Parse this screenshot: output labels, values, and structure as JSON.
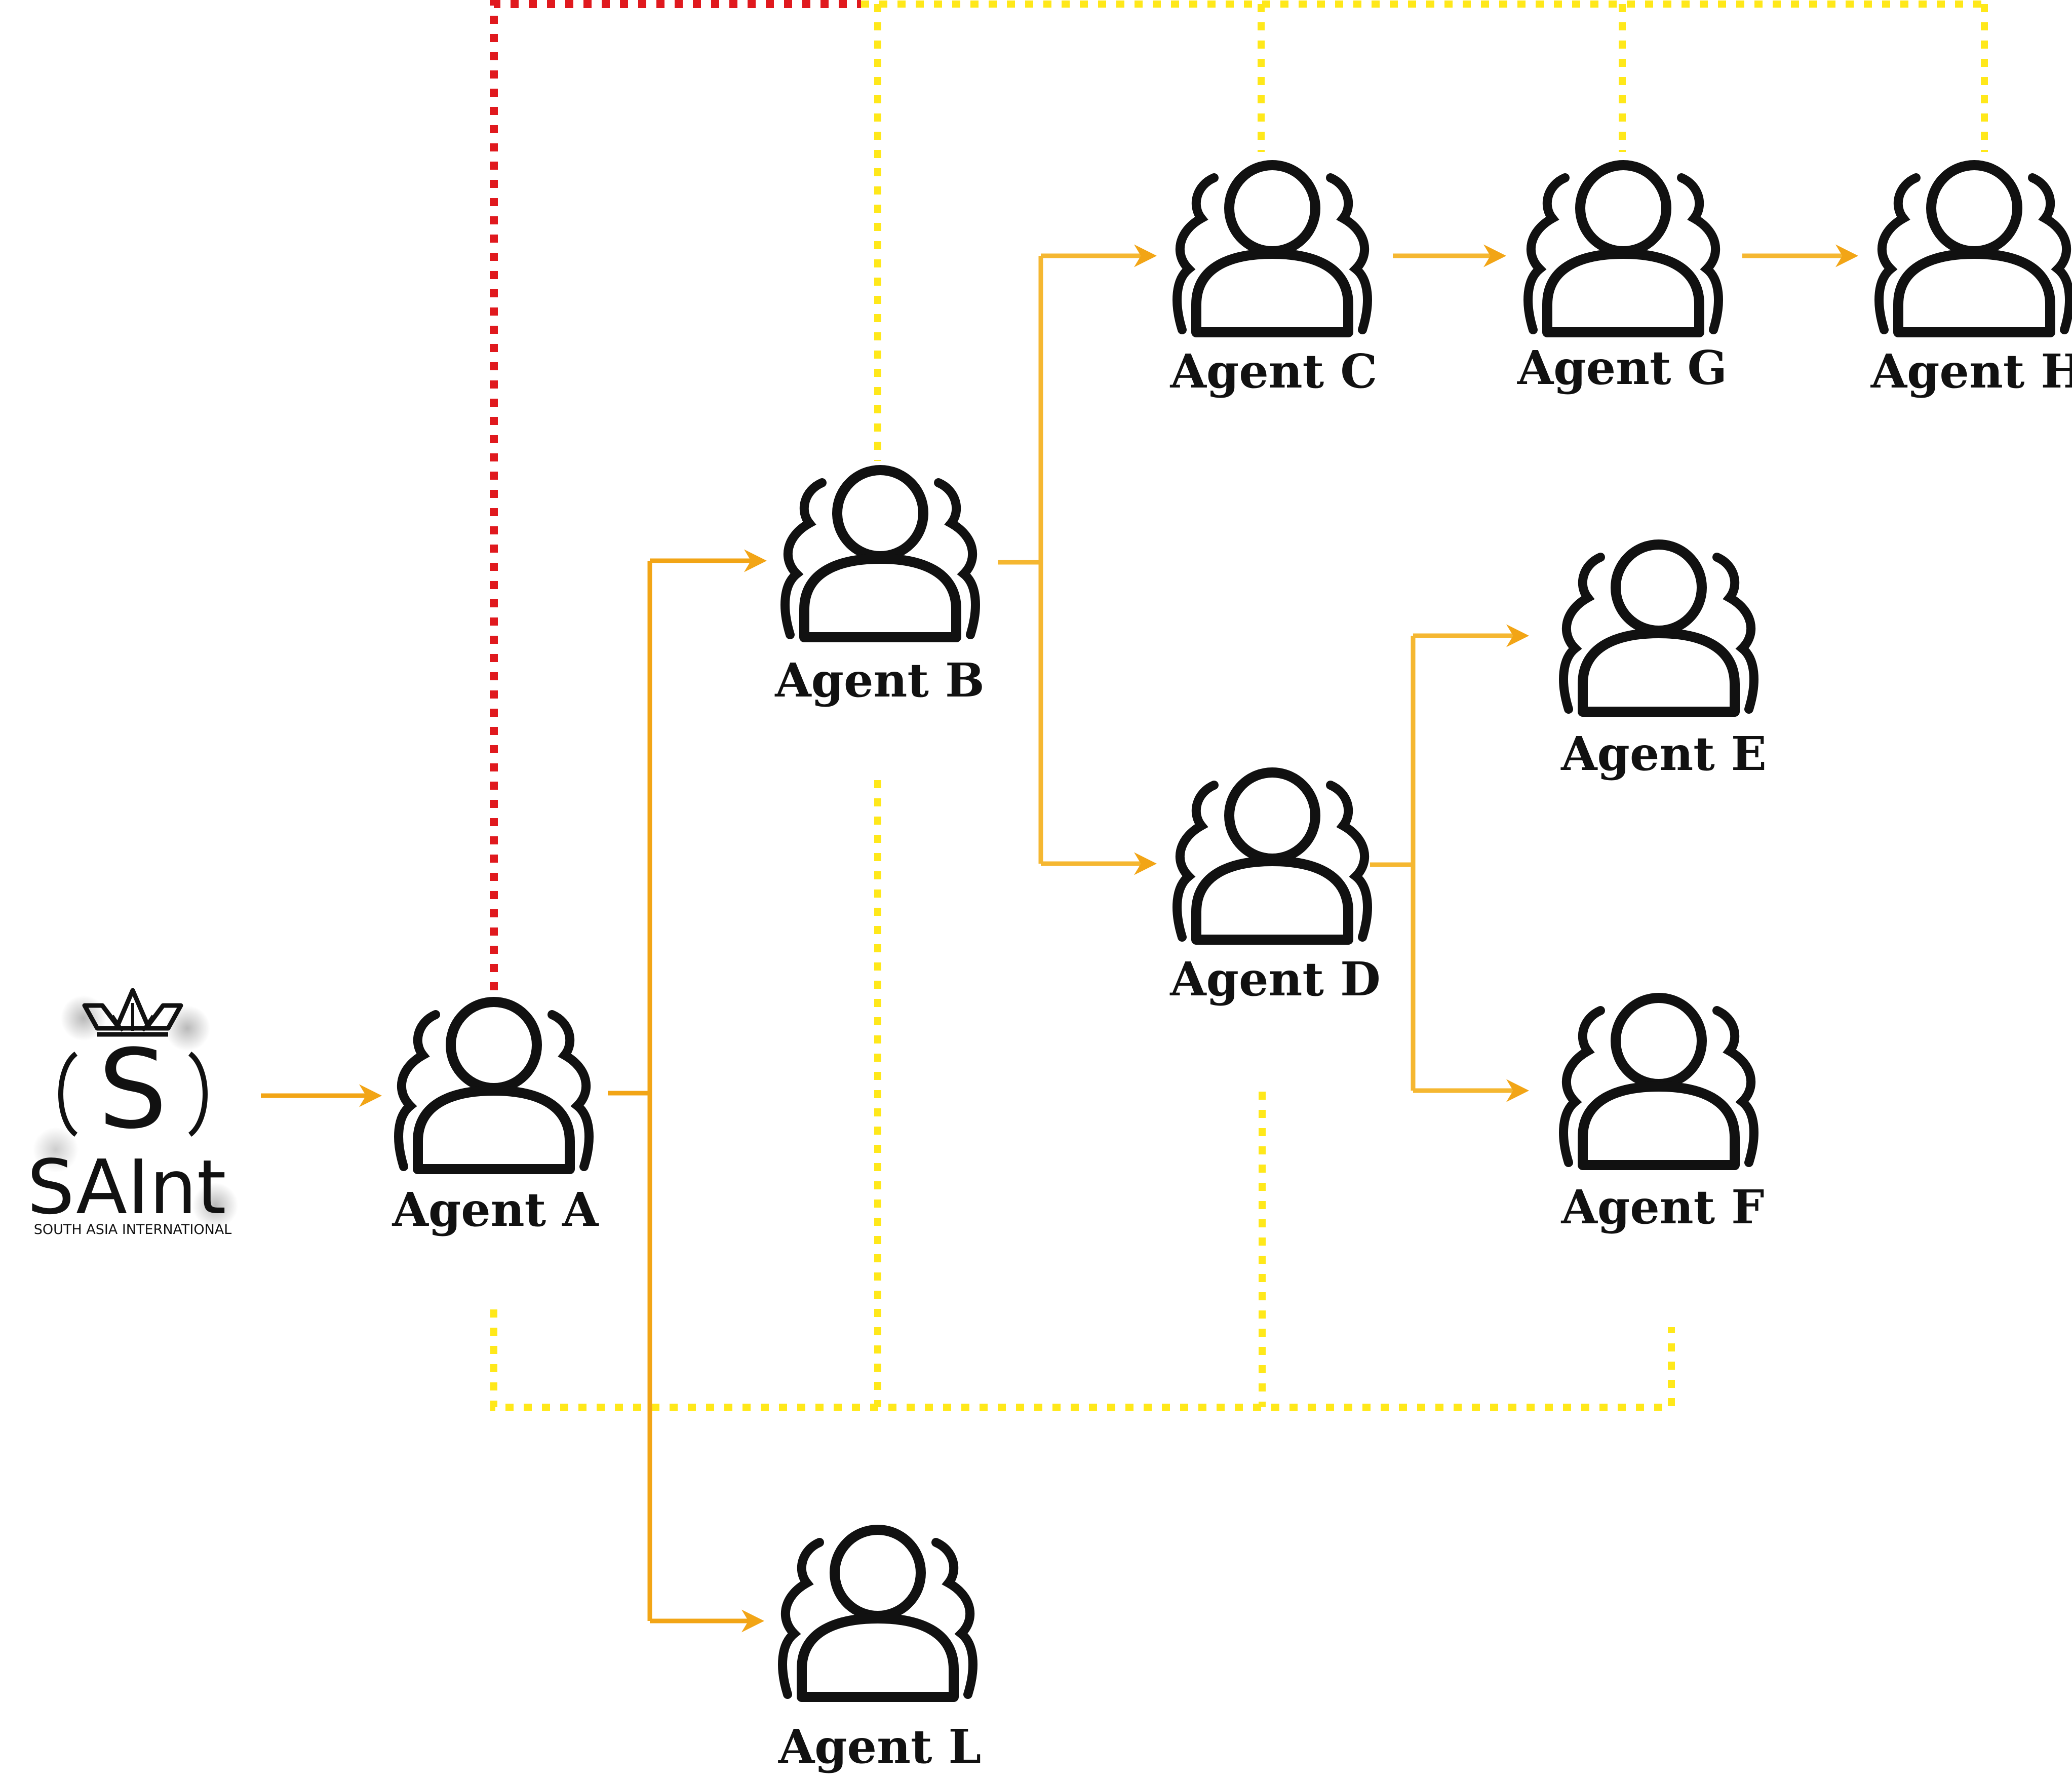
{
  "logo": {
    "name": "SAInt",
    "subtitle": "SOUTH ASIA INTERNATIONAL",
    "monogram": "S",
    "emblem": "crown-icon"
  },
  "agents": [
    {
      "id": "A",
      "label": "Agent A"
    },
    {
      "id": "B",
      "label": "Agent B"
    },
    {
      "id": "C",
      "label": "Agent C"
    },
    {
      "id": "D",
      "label": "Agent D"
    },
    {
      "id": "E",
      "label": "Agent E"
    },
    {
      "id": "F",
      "label": "Agent F"
    },
    {
      "id": "G",
      "label": "Agent G"
    },
    {
      "id": "H",
      "label": "Agent H"
    },
    {
      "id": "L",
      "label": "Agent L"
    }
  ],
  "edges": [
    {
      "from": "logo",
      "to": "A"
    },
    {
      "from": "A",
      "to": "B"
    },
    {
      "from": "A",
      "to": "L"
    },
    {
      "from": "B",
      "to": "C"
    },
    {
      "from": "B",
      "to": "D"
    },
    {
      "from": "C",
      "to": "G"
    },
    {
      "from": "G",
      "to": "H"
    },
    {
      "from": "D",
      "to": "E"
    },
    {
      "from": "D",
      "to": "F"
    }
  ],
  "colors": {
    "arrow": "#F2A516",
    "arrow_light": "#F5B731",
    "link_top_red": "#E0191E",
    "link_yellow": "#FFE81A",
    "icon": "#111111",
    "background": "#FFFFFF"
  },
  "icon_name": "user-group-icon"
}
